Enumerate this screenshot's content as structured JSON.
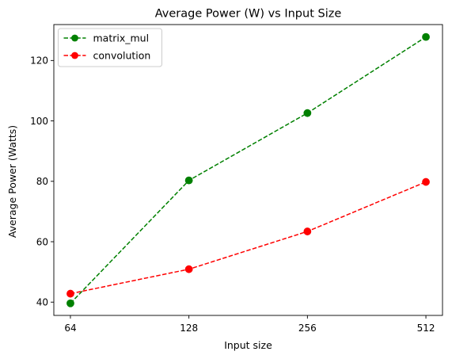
{
  "chart_data": {
    "type": "line",
    "title": "Average Power (W) vs Input Size",
    "xlabel": "Input size",
    "ylabel": "Average Power (Watts)",
    "categories": [
      "64",
      "128",
      "256",
      "512"
    ],
    "y_ticks": [
      "40",
      "60",
      "80",
      "100",
      "120"
    ],
    "ylim": [
      35.6,
      131.9
    ],
    "grid": false,
    "legend_position": "top-left",
    "series": [
      {
        "name": "matrix_mul",
        "values": [
          39.6,
          80.3,
          102.6,
          127.8
        ],
        "color": "#008000",
        "line_style": "dashed",
        "marker": "circle"
      },
      {
        "name": "convolution",
        "values": [
          42.8,
          50.9,
          63.4,
          79.8
        ],
        "color": "#ff0000",
        "line_style": "dashed",
        "marker": "circle"
      }
    ]
  }
}
